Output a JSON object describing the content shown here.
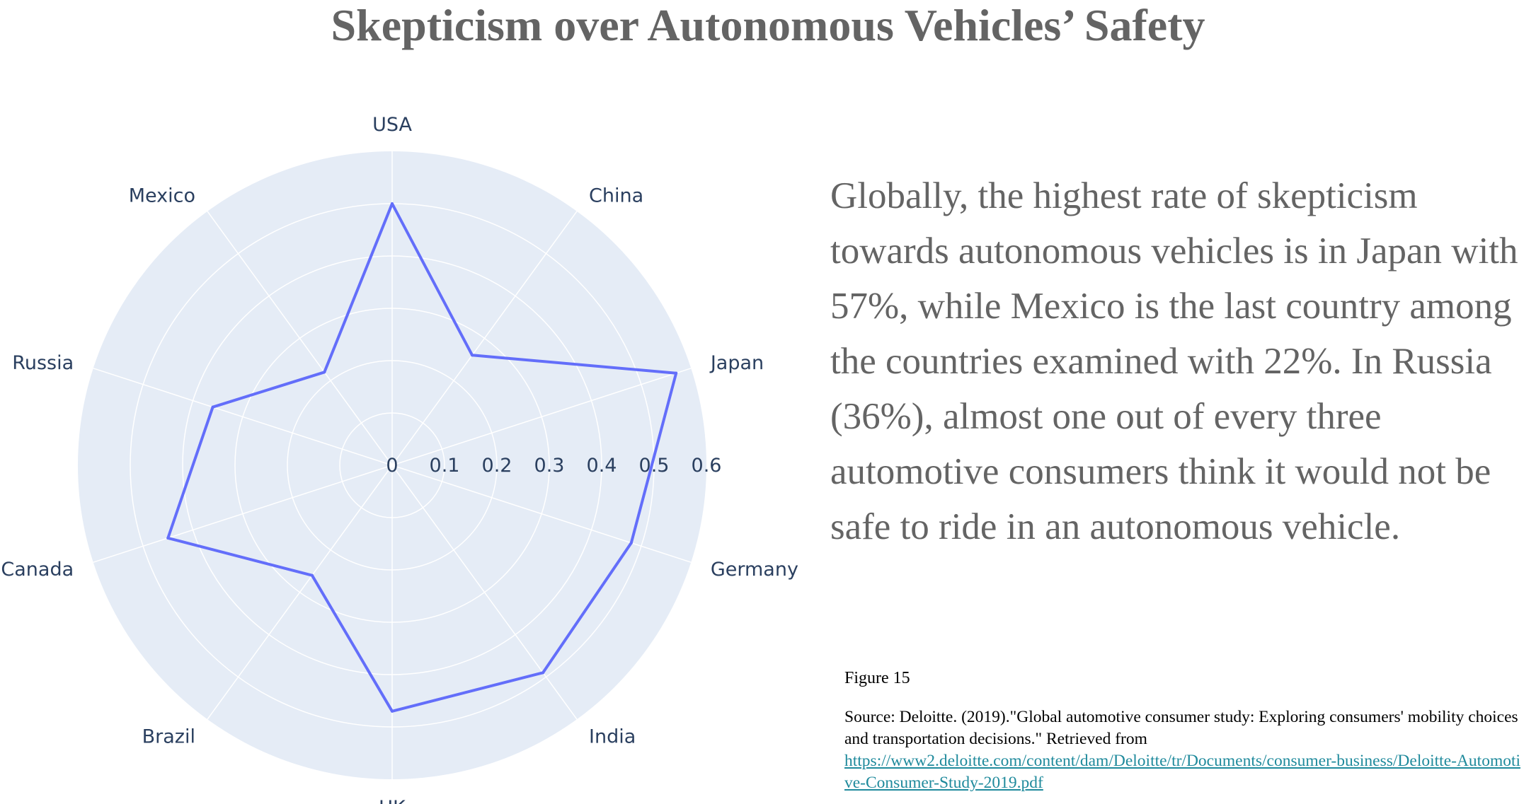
{
  "title": "Skepticism over Autonomous Vehicles’ Safety",
  "description": "Globally, the highest rate of skepticism towards autonomous vehicles is in Japan with 57%, while Mexico is the last country among the countries examined with 22%. In Russia (36%), almost one out of every three automotive consumers think it would not be safe to ride in an autonomous vehicle.",
  "figure_label": "Figure 15",
  "source_text": "Source: Deloitte. (2019).\"Global automotive consumer study: Exploring consumers' mobility choices and transportation decisions.\" Retrieved from",
  "source_link": "https://www2.deloitte.com/content/dam/Deloitte/tr/Documents/consumer-business/Deloitte-Automotive-Consumer-Study-2019.pdf",
  "chart_data": {
    "type": "radar",
    "categories": [
      "USA",
      "China",
      "Japan",
      "Germany",
      "India",
      "UK",
      "Brazil",
      "Canada",
      "Russia",
      "Mexico"
    ],
    "values": [
      0.5,
      0.26,
      0.57,
      0.48,
      0.49,
      0.47,
      0.26,
      0.45,
      0.36,
      0.22
    ],
    "radial_ticks": [
      "0",
      "0.1",
      "0.2",
      "0.3",
      "0.4",
      "0.5",
      "0.6"
    ],
    "radial_range": [
      0,
      0.6
    ],
    "colors": {
      "line": "#636efa",
      "background": "#e5ecf6",
      "grid": "#ffffff",
      "text": "#2a3f5f"
    },
    "grid": true
  }
}
